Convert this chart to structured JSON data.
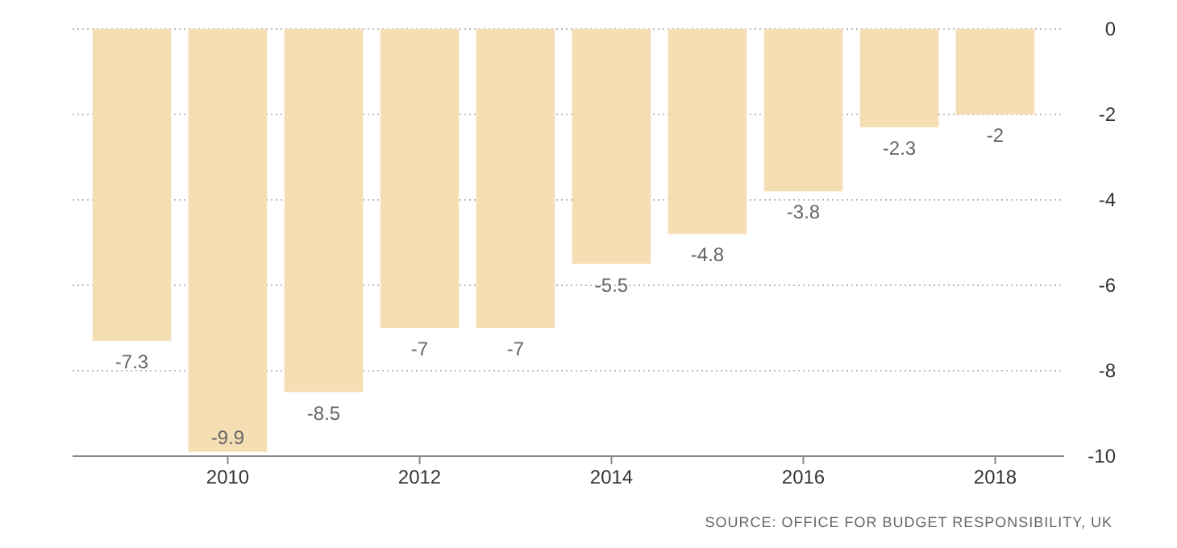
{
  "chart_data": {
    "type": "bar",
    "categories": [
      null,
      "2010",
      null,
      "2012",
      null,
      "2014",
      null,
      "2016",
      null,
      "2018"
    ],
    "values": [
      -7.3,
      -9.9,
      -8.5,
      -7,
      -7,
      -5.5,
      -4.8,
      -3.8,
      -2.3,
      -2
    ],
    "color": "#f5deb3",
    "ylim": [
      -10,
      0
    ],
    "yticks": [
      -10,
      -8,
      -6,
      -4,
      -2,
      0
    ],
    "grid": "y",
    "data_labels": true,
    "annotations": [
      "SOURCE: OFFICE FOR BUDGET RESPONSIBILITY, UK"
    ]
  }
}
